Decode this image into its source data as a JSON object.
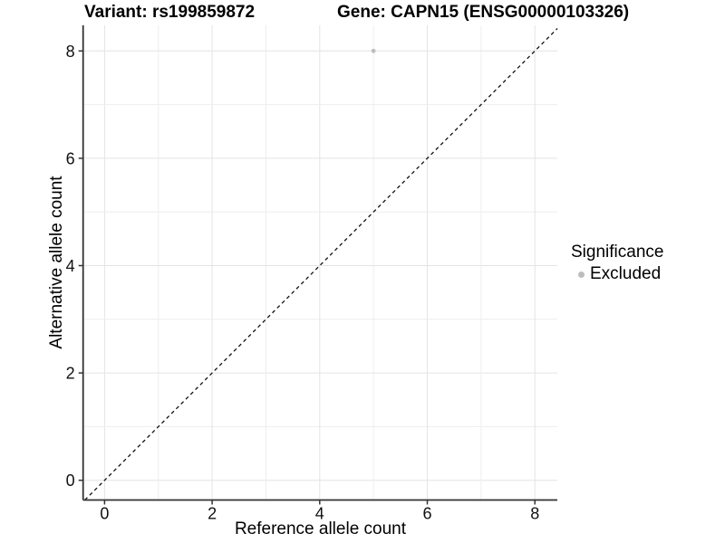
{
  "header": {
    "variant_title": "Variant: rs199859872",
    "gene_title": "Gene: CAPN15 (ENSG00000103326)"
  },
  "chart_data": {
    "type": "scatter",
    "title_left": "Variant: rs199859872",
    "title_right": "Gene: CAPN15 (ENSG00000103326)",
    "xlabel": "Reference allele count",
    "ylabel": "Alternative allele count",
    "x_ticks": [
      0,
      2,
      4,
      6,
      8
    ],
    "y_ticks": [
      0,
      2,
      4,
      6,
      8
    ],
    "x_tick_labels": [
      "0",
      "2",
      "4",
      "6",
      "8"
    ],
    "y_tick_labels": [
      "0",
      "2",
      "4",
      "6",
      "8"
    ],
    "xlim": [
      -0.4,
      8.45
    ],
    "ylim": [
      -0.4,
      8.45
    ],
    "grid": true,
    "grid_interval_minor": 1,
    "reference_line": {
      "kind": "identity",
      "equation": "y = x",
      "style": "dashed",
      "color": "#111111"
    },
    "series": [
      {
        "name": "Excluded",
        "color": "#bdbdbd",
        "points": [
          {
            "x": 5,
            "y": 8
          }
        ]
      }
    ],
    "legend": {
      "title": "Significance",
      "position": "right",
      "items": [
        {
          "label": "Excluded",
          "color": "#bdbdbd"
        }
      ]
    }
  }
}
